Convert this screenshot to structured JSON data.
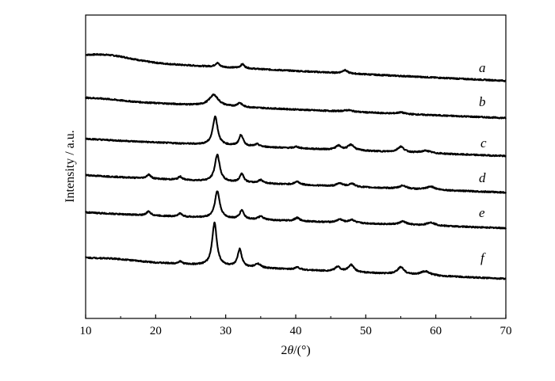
{
  "chart_data": {
    "type": "line",
    "xlabel_prefix": "2",
    "xlabel_theta": "θ",
    "xlabel_suffix": "/(°)",
    "ylabel": "Intensity / a.u.",
    "xlim": [
      10,
      70
    ],
    "x_ticks": [
      10,
      20,
      30,
      40,
      50,
      60,
      70
    ],
    "y_ticks_labeled": false,
    "grid": false,
    "series": [
      {
        "name": "a",
        "baseline_at_10": 28,
        "baseline_at_70": 0,
        "features": [
          {
            "type": "hump",
            "center": 13,
            "width": 5,
            "height": 7
          },
          {
            "type": "peak",
            "center": 28.8,
            "width": 0.35,
            "height": 5
          },
          {
            "type": "peak",
            "center": 32.4,
            "width": 0.35,
            "height": 5
          },
          {
            "type": "peak",
            "center": 47.0,
            "width": 0.45,
            "height": 4
          }
        ]
      },
      {
        "name": "b",
        "baseline_at_10": 24,
        "baseline_at_70": 0,
        "features": [
          {
            "type": "hump",
            "center": 12,
            "width": 4,
            "height": 2
          },
          {
            "type": "peak",
            "center": 28.3,
            "width": 0.8,
            "height": 14
          },
          {
            "type": "peak",
            "center": 32.0,
            "width": 0.4,
            "height": 5
          },
          {
            "type": "peak",
            "center": 47.5,
            "width": 0.8,
            "height": 2
          },
          {
            "type": "peak",
            "center": 55.0,
            "width": 0.6,
            "height": 2
          }
        ]
      },
      {
        "name": "c",
        "baseline_at_10": 22,
        "baseline_at_70": 0,
        "features": [
          {
            "type": "peak",
            "center": 28.5,
            "width": 0.42,
            "height": 36
          },
          {
            "type": "peak",
            "center": 32.2,
            "width": 0.35,
            "height": 14
          },
          {
            "type": "peak",
            "center": 34.5,
            "width": 0.4,
            "height": 3
          },
          {
            "type": "peak",
            "center": 40.1,
            "width": 0.4,
            "height": 2
          },
          {
            "type": "peak",
            "center": 46.1,
            "width": 0.5,
            "height": 5
          },
          {
            "type": "peak",
            "center": 47.9,
            "width": 0.55,
            "height": 7
          },
          {
            "type": "peak",
            "center": 55.0,
            "width": 0.55,
            "height": 7
          },
          {
            "type": "peak",
            "center": 58.6,
            "width": 0.8,
            "height": 3
          }
        ]
      },
      {
        "name": "d",
        "baseline_at_10": 22,
        "baseline_at_70": 0,
        "features": [
          {
            "type": "peak",
            "center": 19.0,
            "width": 0.35,
            "height": 5
          },
          {
            "type": "peak",
            "center": 23.5,
            "width": 0.35,
            "height": 4
          },
          {
            "type": "peak",
            "center": 28.8,
            "width": 0.42,
            "height": 34
          },
          {
            "type": "peak",
            "center": 32.3,
            "width": 0.35,
            "height": 11
          },
          {
            "type": "peak",
            "center": 35.0,
            "width": 0.45,
            "height": 4
          },
          {
            "type": "peak",
            "center": 40.2,
            "width": 0.45,
            "height": 4
          },
          {
            "type": "peak",
            "center": 46.3,
            "width": 0.5,
            "height": 4
          },
          {
            "type": "peak",
            "center": 48.0,
            "width": 0.5,
            "height": 4
          },
          {
            "type": "peak",
            "center": 55.3,
            "width": 0.6,
            "height": 4
          },
          {
            "type": "peak",
            "center": 59.3,
            "width": 0.7,
            "height": 4
          }
        ]
      },
      {
        "name": "e",
        "baseline_at_10": 20,
        "baseline_at_70": 0,
        "features": [
          {
            "type": "peak",
            "center": 19.0,
            "width": 0.35,
            "height": 5
          },
          {
            "type": "peak",
            "center": 23.5,
            "width": 0.35,
            "height": 4
          },
          {
            "type": "peak",
            "center": 28.8,
            "width": 0.42,
            "height": 34
          },
          {
            "type": "peak",
            "center": 32.3,
            "width": 0.35,
            "height": 11
          },
          {
            "type": "peak",
            "center": 35.0,
            "width": 0.45,
            "height": 4
          },
          {
            "type": "peak",
            "center": 40.2,
            "width": 0.45,
            "height": 4
          },
          {
            "type": "peak",
            "center": 46.3,
            "width": 0.5,
            "height": 4
          },
          {
            "type": "peak",
            "center": 48.0,
            "width": 0.5,
            "height": 4
          },
          {
            "type": "peak",
            "center": 55.3,
            "width": 0.6,
            "height": 4
          },
          {
            "type": "peak",
            "center": 59.3,
            "width": 0.7,
            "height": 4
          }
        ]
      },
      {
        "name": "f",
        "baseline_at_10": 26,
        "baseline_at_70": 0,
        "features": [
          {
            "type": "hump",
            "center": 14,
            "width": 4,
            "height": 2
          },
          {
            "type": "peak",
            "center": 23.5,
            "width": 0.35,
            "height": 3
          },
          {
            "type": "peak",
            "center": 28.4,
            "width": 0.4,
            "height": 54
          },
          {
            "type": "peak",
            "center": 32.0,
            "width": 0.35,
            "height": 22
          },
          {
            "type": "peak",
            "center": 34.6,
            "width": 0.45,
            "height": 5
          },
          {
            "type": "peak",
            "center": 40.2,
            "width": 0.45,
            "height": 3
          },
          {
            "type": "peak",
            "center": 46.0,
            "width": 0.45,
            "height": 6
          },
          {
            "type": "peak",
            "center": 47.9,
            "width": 0.5,
            "height": 9
          },
          {
            "type": "peak",
            "center": 55.0,
            "width": 0.55,
            "height": 9
          },
          {
            "type": "peak",
            "center": 58.5,
            "width": 0.8,
            "height": 5
          }
        ]
      }
    ]
  }
}
